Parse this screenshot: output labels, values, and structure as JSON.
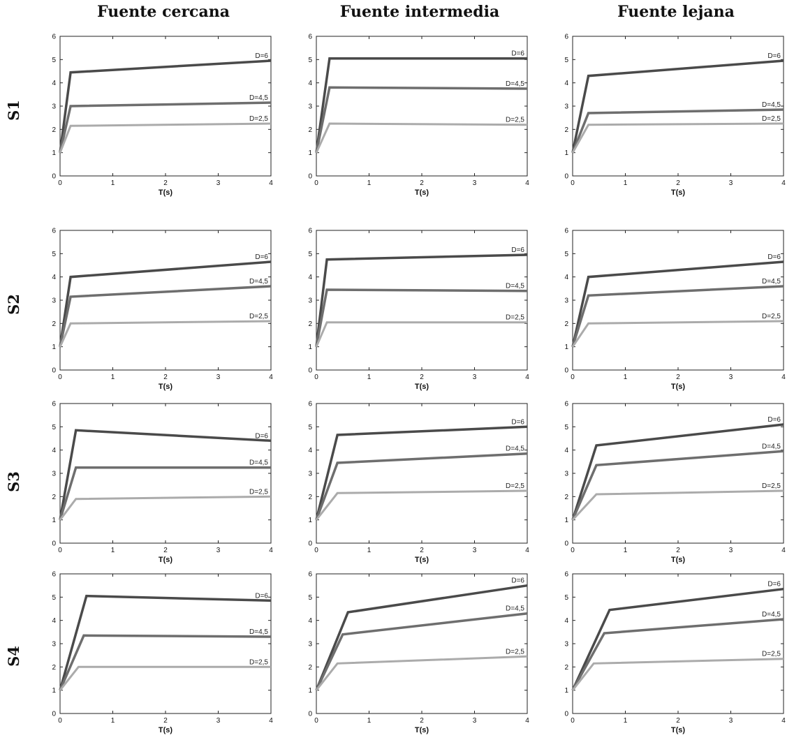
{
  "column_titles": [
    "Fuente cercana",
    "Fuente intermedia",
    "Fuente lejana"
  ],
  "row_titles": [
    "S1",
    "S2",
    "S3",
    "S4"
  ],
  "colors": {
    "D=6": "#4a4a4a",
    "D=4,5": "#6e6e6e",
    "D=2,5": "#ababab"
  },
  "chart_data": [
    {
      "row": "S1",
      "column": "Fuente cercana",
      "type": "line",
      "xlabel": "T(s)",
      "xlim": [
        0,
        4
      ],
      "ylim": [
        0,
        6
      ],
      "xticks": [
        "0",
        "1",
        "2",
        "3",
        "4"
      ],
      "yticks": [
        "0",
        "1",
        "2",
        "3",
        "4",
        "5",
        "6"
      ],
      "series": [
        {
          "name": "D=6",
          "x": [
            0,
            0.2,
            4
          ],
          "y": [
            1,
            4.45,
            4.95
          ]
        },
        {
          "name": "D=4,5",
          "x": [
            0,
            0.2,
            4
          ],
          "y": [
            1,
            3.0,
            3.15
          ]
        },
        {
          "name": "D=2,5",
          "x": [
            0,
            0.2,
            4
          ],
          "y": [
            1,
            2.15,
            2.25
          ]
        }
      ]
    },
    {
      "row": "S1",
      "column": "Fuente intermedia",
      "type": "line",
      "xlabel": "T(s)",
      "xlim": [
        0,
        4
      ],
      "ylim": [
        0,
        6
      ],
      "xticks": [
        "0",
        "1",
        "2",
        "3",
        "4"
      ],
      "yticks": [
        "0",
        "1",
        "2",
        "3",
        "4",
        "5",
        "6"
      ],
      "series": [
        {
          "name": "D=6",
          "x": [
            0,
            0.25,
            4
          ],
          "y": [
            1,
            5.05,
            5.05
          ]
        },
        {
          "name": "D=4,5",
          "x": [
            0,
            0.25,
            4
          ],
          "y": [
            1,
            3.8,
            3.75
          ]
        },
        {
          "name": "D=2,5",
          "x": [
            0,
            0.25,
            4
          ],
          "y": [
            1,
            2.25,
            2.2
          ]
        }
      ]
    },
    {
      "row": "S1",
      "column": "Fuente lejana",
      "type": "line",
      "xlabel": "T(s)",
      "xlim": [
        0,
        4
      ],
      "ylim": [
        0,
        6
      ],
      "xticks": [
        "0",
        "1",
        "2",
        "3",
        "4"
      ],
      "yticks": [
        "0",
        "1",
        "2",
        "3",
        "4",
        "5",
        "6"
      ],
      "series": [
        {
          "name": "D=6",
          "x": [
            0,
            0.3,
            4
          ],
          "y": [
            1,
            4.3,
            4.95
          ]
        },
        {
          "name": "D=4,5",
          "x": [
            0,
            0.3,
            4
          ],
          "y": [
            1,
            2.7,
            2.85
          ]
        },
        {
          "name": "D=2,5",
          "x": [
            0,
            0.3,
            4
          ],
          "y": [
            1,
            2.2,
            2.25
          ]
        }
      ]
    },
    {
      "row": "S2",
      "column": "Fuente cercana",
      "type": "line",
      "xlabel": "T(s)",
      "xlim": [
        0,
        4
      ],
      "ylim": [
        0,
        6
      ],
      "xticks": [
        "0",
        "1",
        "2",
        "3",
        "4"
      ],
      "yticks": [
        "0",
        "1",
        "2",
        "3",
        "4",
        "5",
        "6"
      ],
      "series": [
        {
          "name": "D=6",
          "x": [
            0,
            0.2,
            4
          ],
          "y": [
            1,
            4.0,
            4.65
          ]
        },
        {
          "name": "D=4,5",
          "x": [
            0,
            0.2,
            4
          ],
          "y": [
            1,
            3.15,
            3.6
          ]
        },
        {
          "name": "D=2,5",
          "x": [
            0,
            0.2,
            4
          ],
          "y": [
            1,
            2.0,
            2.1
          ]
        }
      ]
    },
    {
      "row": "S2",
      "column": "Fuente intermedia",
      "type": "line",
      "xlabel": "T(s)",
      "xlim": [
        0,
        4
      ],
      "ylim": [
        0,
        6
      ],
      "xticks": [
        "0",
        "1",
        "2",
        "3",
        "4"
      ],
      "yticks": [
        "0",
        "1",
        "2",
        "3",
        "4",
        "5",
        "6"
      ],
      "series": [
        {
          "name": "D=6",
          "x": [
            0,
            0.2,
            4
          ],
          "y": [
            1,
            4.75,
            4.95
          ]
        },
        {
          "name": "D=4,5",
          "x": [
            0,
            0.2,
            4
          ],
          "y": [
            1,
            3.45,
            3.4
          ]
        },
        {
          "name": "D=2,5",
          "x": [
            0,
            0.2,
            4
          ],
          "y": [
            1,
            2.05,
            2.05
          ]
        }
      ]
    },
    {
      "row": "S2",
      "column": "Fuente lejana",
      "type": "line",
      "xlabel": "T(s)",
      "xlim": [
        0,
        4
      ],
      "ylim": [
        0,
        6
      ],
      "xticks": [
        "0",
        "1",
        "2",
        "3",
        "4"
      ],
      "yticks": [
        "0",
        "1",
        "2",
        "3",
        "4",
        "5",
        "6"
      ],
      "series": [
        {
          "name": "D=6",
          "x": [
            0,
            0.3,
            4
          ],
          "y": [
            1,
            4.0,
            4.65
          ]
        },
        {
          "name": "D=4,5",
          "x": [
            0,
            0.3,
            4
          ],
          "y": [
            1,
            3.2,
            3.6
          ]
        },
        {
          "name": "D=2,5",
          "x": [
            0,
            0.3,
            4
          ],
          "y": [
            1,
            2.0,
            2.1
          ]
        }
      ]
    },
    {
      "row": "S3",
      "column": "Fuente cercana",
      "type": "line",
      "xlabel": "T(s)",
      "xlim": [
        0,
        4
      ],
      "ylim": [
        0,
        6
      ],
      "xticks": [
        "0",
        "1",
        "2",
        "3",
        "4"
      ],
      "yticks": [
        "0",
        "1",
        "2",
        "3",
        "4",
        "5",
        "6"
      ],
      "series": [
        {
          "name": "D=6",
          "x": [
            0,
            0.3,
            4
          ],
          "y": [
            1,
            4.85,
            4.4
          ]
        },
        {
          "name": "D=4,5",
          "x": [
            0,
            0.3,
            4
          ],
          "y": [
            1,
            3.25,
            3.25
          ]
        },
        {
          "name": "D=2,5",
          "x": [
            0,
            0.3,
            4
          ],
          "y": [
            1,
            1.9,
            2.0
          ]
        }
      ]
    },
    {
      "row": "S3",
      "column": "Fuente intermedia",
      "type": "line",
      "xlabel": "T(s)",
      "xlim": [
        0,
        4
      ],
      "ylim": [
        0,
        6
      ],
      "xticks": [
        "0",
        "1",
        "2",
        "3",
        "4"
      ],
      "yticks": [
        "0",
        "1",
        "2",
        "3",
        "4",
        "5",
        "6"
      ],
      "series": [
        {
          "name": "D=6",
          "x": [
            0,
            0.4,
            4
          ],
          "y": [
            1,
            4.65,
            5.0
          ]
        },
        {
          "name": "D=4,5",
          "x": [
            0,
            0.4,
            4
          ],
          "y": [
            1,
            3.45,
            3.85
          ]
        },
        {
          "name": "D=2,5",
          "x": [
            0,
            0.4,
            4
          ],
          "y": [
            1,
            2.15,
            2.25
          ]
        }
      ]
    },
    {
      "row": "S3",
      "column": "Fuente lejana",
      "type": "line",
      "xlabel": "T(s)",
      "xlim": [
        0,
        4
      ],
      "ylim": [
        0,
        6
      ],
      "xticks": [
        "0",
        "1",
        "2",
        "3",
        "4"
      ],
      "yticks": [
        "0",
        "1",
        "2",
        "3",
        "4",
        "5",
        "6"
      ],
      "series": [
        {
          "name": "D=6",
          "x": [
            0,
            0.45,
            4
          ],
          "y": [
            1,
            4.2,
            5.1
          ]
        },
        {
          "name": "D=4,5",
          "x": [
            0,
            0.45,
            4
          ],
          "y": [
            1,
            3.35,
            3.95
          ]
        },
        {
          "name": "D=2,5",
          "x": [
            0,
            0.45,
            4
          ],
          "y": [
            1,
            2.1,
            2.25
          ]
        }
      ]
    },
    {
      "row": "S4",
      "column": "Fuente cercana",
      "type": "line",
      "xlabel": "T(s)",
      "xlim": [
        0,
        4
      ],
      "ylim": [
        0,
        6
      ],
      "xticks": [
        "0",
        "1",
        "2",
        "3",
        "4"
      ],
      "yticks": [
        "0",
        "1",
        "2",
        "3",
        "4",
        "5",
        "6"
      ],
      "series": [
        {
          "name": "D=6",
          "x": [
            0,
            0.5,
            4
          ],
          "y": [
            1,
            5.05,
            4.85
          ]
        },
        {
          "name": "D=4,5",
          "x": [
            0,
            0.45,
            4
          ],
          "y": [
            1,
            3.35,
            3.3
          ]
        },
        {
          "name": "D=2,5",
          "x": [
            0,
            0.35,
            4
          ],
          "y": [
            1,
            2.0,
            2.0
          ]
        }
      ]
    },
    {
      "row": "S4",
      "column": "Fuente intermedia",
      "type": "line",
      "xlabel": "T(s)",
      "xlim": [
        0,
        4
      ],
      "ylim": [
        0,
        6
      ],
      "xticks": [
        "0",
        "1",
        "2",
        "3",
        "4"
      ],
      "yticks": [
        "0",
        "1",
        "2",
        "3",
        "4",
        "5",
        "6"
      ],
      "series": [
        {
          "name": "D=6",
          "x": [
            0,
            0.6,
            4
          ],
          "y": [
            1,
            4.35,
            5.5
          ]
        },
        {
          "name": "D=4,5",
          "x": [
            0,
            0.5,
            4
          ],
          "y": [
            1,
            3.4,
            4.3
          ]
        },
        {
          "name": "D=2,5",
          "x": [
            0,
            0.4,
            4
          ],
          "y": [
            1,
            2.15,
            2.45
          ]
        }
      ]
    },
    {
      "row": "S4",
      "column": "Fuente lejana",
      "type": "line",
      "xlabel": "T(s)",
      "xlim": [
        0,
        4
      ],
      "ylim": [
        0,
        6
      ],
      "xticks": [
        "0",
        "1",
        "2",
        "3",
        "4"
      ],
      "yticks": [
        "0",
        "1",
        "2",
        "3",
        "4",
        "5",
        "6"
      ],
      "series": [
        {
          "name": "D=6",
          "x": [
            0,
            0.7,
            4
          ],
          "y": [
            1,
            4.45,
            5.35
          ]
        },
        {
          "name": "D=4,5",
          "x": [
            0,
            0.6,
            4
          ],
          "y": [
            1,
            3.45,
            4.05
          ]
        },
        {
          "name": "D=2,5",
          "x": [
            0,
            0.4,
            4
          ],
          "y": [
            1,
            2.15,
            2.35
          ]
        }
      ]
    }
  ]
}
